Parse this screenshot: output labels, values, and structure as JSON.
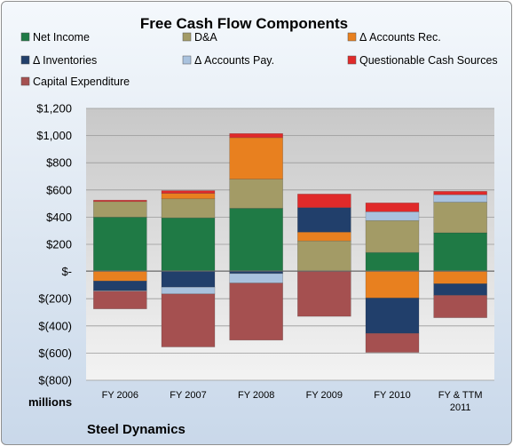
{
  "chart_data": {
    "type": "bar",
    "stacked": true,
    "title": "Free Cash Flow Components",
    "categories": [
      "FY 2006",
      "FY 2007",
      "FY 2008",
      "FY 2009",
      "FY 2010",
      "FY & TTM\n2011"
    ],
    "units_label": "millions",
    "footer": "Steel Dynamics",
    "ylim": [
      -800,
      1200
    ],
    "yticks": [
      1200,
      1000,
      800,
      600,
      400,
      200,
      0,
      -200,
      -400,
      -600,
      -800
    ],
    "ytick_labels": [
      "$1,200",
      "$1,000",
      "$800",
      "$600",
      "$400",
      "$200",
      "$-",
      "$(200)",
      "$(400)",
      "$(600)",
      "$(800)"
    ],
    "grid": true,
    "legend_position": "top",
    "series": [
      {
        "name": "Net Income",
        "color": "#1f7a45",
        "values": [
          400,
          395,
          465,
          0,
          140,
          285
        ]
      },
      {
        "name": "D&A",
        "color": "#a39b66",
        "values": [
          115,
          140,
          215,
          225,
          235,
          225
        ]
      },
      {
        "name": "Δ Accounts Rec.",
        "color": "#e8801f",
        "values": [
          -70,
          40,
          305,
          65,
          -195,
          -90
        ]
      },
      {
        "name": "Δ Inventories",
        "color": "#213f6b",
        "values": [
          -70,
          -115,
          -15,
          180,
          -260,
          -85
        ]
      },
      {
        "name": "Δ Accounts Pay.",
        "color": "#a9c2de",
        "values": [
          -5,
          -50,
          -70,
          0,
          65,
          55
        ]
      },
      {
        "name": "Questionable Cash Sources",
        "color": "#e02a2a",
        "values": [
          10,
          20,
          30,
          100,
          65,
          25
        ]
      },
      {
        "name": "Capital Expenditure",
        "color": "#a55050",
        "values": [
          -130,
          -390,
          -420,
          -330,
          -140,
          -165
        ]
      }
    ]
  }
}
